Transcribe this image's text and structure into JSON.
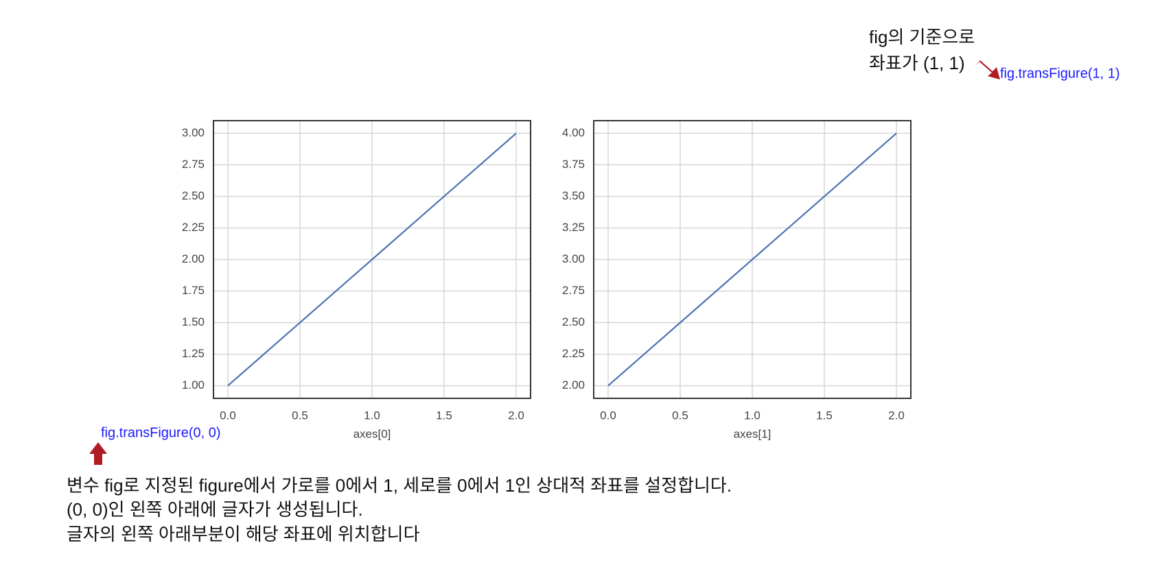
{
  "chart_data": [
    {
      "type": "line",
      "xlabel": "axes[0]",
      "x": [
        0,
        1,
        2
      ],
      "series": [
        {
          "color": "#4c72b0",
          "values": [
            1,
            2,
            3
          ]
        }
      ],
      "xlim": [
        -0.1,
        2.1
      ],
      "xticks": [
        {
          "value": 0,
          "label": "0.0"
        },
        {
          "value": 0.5,
          "label": "0.5"
        },
        {
          "value": 1,
          "label": "1.0"
        },
        {
          "value": 1.5,
          "label": "1.5"
        },
        {
          "value": 2,
          "label": "2.0"
        }
      ],
      "ylim": [
        0.9,
        3.1
      ],
      "yticks": [
        {
          "value": 1,
          "label": "1.00"
        },
        {
          "value": 1.25,
          "label": "1.25"
        },
        {
          "value": 1.5,
          "label": "1.50"
        },
        {
          "value": 1.75,
          "label": "1.75"
        },
        {
          "value": 2,
          "label": "2.00"
        },
        {
          "value": 2.25,
          "label": "2.25"
        },
        {
          "value": 2.5,
          "label": "2.50"
        },
        {
          "value": 2.75,
          "label": "2.75"
        },
        {
          "value": 3,
          "label": "3.00"
        }
      ],
      "grid": true
    },
    {
      "type": "line",
      "xlabel": "axes[1]",
      "x": [
        0,
        1,
        2
      ],
      "series": [
        {
          "color": "#4c72b0",
          "values": [
            2,
            3,
            4
          ]
        }
      ],
      "xlim": [
        -0.1,
        2.1
      ],
      "xticks": [
        {
          "value": 0,
          "label": "0.0"
        },
        {
          "value": 0.5,
          "label": "0.5"
        },
        {
          "value": 1,
          "label": "1.0"
        },
        {
          "value": 1.5,
          "label": "1.5"
        },
        {
          "value": 2,
          "label": "2.0"
        }
      ],
      "ylim": [
        1.9,
        4.1
      ],
      "yticks": [
        {
          "value": 2,
          "label": "2.00"
        },
        {
          "value": 2.25,
          "label": "2.25"
        },
        {
          "value": 2.5,
          "label": "2.50"
        },
        {
          "value": 2.75,
          "label": "2.75"
        },
        {
          "value": 3,
          "label": "3.00"
        },
        {
          "value": 3.25,
          "label": "3.25"
        },
        {
          "value": 3.5,
          "label": "3.50"
        },
        {
          "value": 3.75,
          "label": "3.75"
        },
        {
          "value": 4,
          "label": "4.00"
        }
      ],
      "grid": true
    }
  ],
  "annotations": {
    "origin_label": "fig.transFigure(0, 0)",
    "corner_label": "fig.transFigure(1, 1)",
    "corner_note": [
      "fig의 기준으로",
      "좌표가 (1, 1)"
    ],
    "description": [
      "변수 fig로 지정된 figure에서 가로를 0에서 1, 세로를 0에서 1인 상대적 좌표를 설정합니다.",
      "(0, 0)인 왼쪽 아래에 글자가 생성됩니다.",
      "글자의 왼쪽 아래부분이 해당 좌표에 위치합니다"
    ]
  }
}
